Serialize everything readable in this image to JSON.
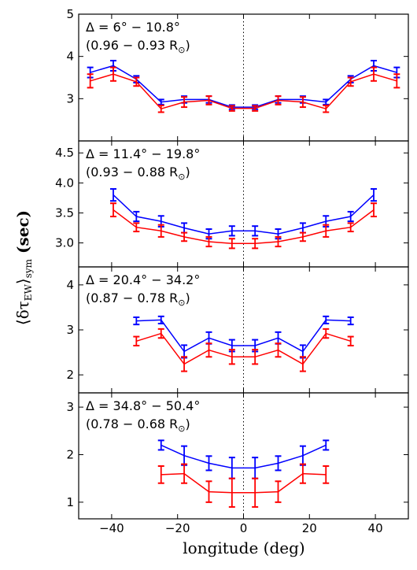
{
  "figure": {
    "xlabel": "longitude (deg)",
    "ylabel_main": "⟨δτ",
    "ylabel_sub1": "EW",
    "ylabel_mid": "⟩",
    "ylabel_sub2": "sym",
    "ylabel_unit": " (sec)",
    "xticks": [
      -40,
      -20,
      0,
      20,
      40
    ],
    "xticklabels": [
      "−40",
      "−20",
      "0",
      "20",
      "40"
    ],
    "xlim": [
      -50,
      50
    ],
    "vline_x": 0
  },
  "chart_data": [
    {
      "type": "line",
      "label_line1": "Δ = 6° − 10.8°",
      "label_line2": "(0.96 − 0.93 R",
      "label_sun": "⊙",
      "label_close": ")",
      "ylim": [
        2.0,
        5.0
      ],
      "yticks": [
        3,
        4,
        5
      ],
      "yticklabels": [
        "3",
        "4",
        "5"
      ],
      "x": [
        -46.5,
        -39.5,
        -32.5,
        -25,
        -18,
        -10.5,
        -3.5,
        3.5,
        10.5,
        18,
        25,
        32.5,
        39.5,
        46.5
      ],
      "series": [
        {
          "color": "#0000ff",
          "values": [
            3.62,
            3.78,
            3.46,
            2.92,
            2.98,
            2.98,
            2.8,
            2.8,
            2.98,
            2.98,
            2.92,
            3.46,
            3.78,
            3.62
          ],
          "err": [
            0.12,
            0.12,
            0.08,
            0.06,
            0.08,
            0.08,
            0.05,
            0.05,
            0.08,
            0.08,
            0.06,
            0.08,
            0.12,
            0.12
          ]
        },
        {
          "color": "#ff0000",
          "values": [
            3.42,
            3.58,
            3.4,
            2.76,
            2.92,
            2.96,
            2.77,
            2.77,
            2.96,
            2.92,
            2.76,
            3.4,
            3.58,
            3.42
          ],
          "err": [
            0.16,
            0.16,
            0.1,
            0.08,
            0.12,
            0.1,
            0.06,
            0.06,
            0.1,
            0.12,
            0.08,
            0.1,
            0.16,
            0.16
          ]
        }
      ]
    },
    {
      "type": "line",
      "label_line1": "Δ = 11.4° − 19.8°",
      "label_line2": "(0.93 − 0.88 R",
      "label_sun": "⊙",
      "label_close": ")",
      "ylim": [
        2.6,
        4.7
      ],
      "yticks": [
        3.0,
        3.5,
        4.0,
        4.5
      ],
      "yticklabels": [
        "3.0",
        "3.5",
        "4.0",
        "4.5"
      ],
      "x": [
        -39.5,
        -32.5,
        -25,
        -18,
        -10.5,
        -3.5,
        3.5,
        10.5,
        18,
        25,
        32.5,
        39.5
      ],
      "series": [
        {
          "color": "#0000ff",
          "values": [
            3.8,
            3.44,
            3.36,
            3.25,
            3.15,
            3.2,
            3.2,
            3.15,
            3.25,
            3.36,
            3.44,
            3.8
          ],
          "err": [
            0.1,
            0.08,
            0.09,
            0.08,
            0.08,
            0.08,
            0.08,
            0.08,
            0.08,
            0.09,
            0.08,
            0.1
          ]
        },
        {
          "color": "#ff0000",
          "values": [
            3.55,
            3.26,
            3.2,
            3.1,
            3.02,
            2.99,
            2.99,
            3.02,
            3.1,
            3.2,
            3.26,
            3.55
          ],
          "err": [
            0.11,
            0.07,
            0.1,
            0.07,
            0.08,
            0.08,
            0.08,
            0.08,
            0.07,
            0.1,
            0.07,
            0.11
          ]
        }
      ]
    },
    {
      "type": "line",
      "label_line1": "Δ = 20.4° − 34.2°",
      "label_line2": "(0.87 − 0.78 R",
      "label_sun": "⊙",
      "label_close": ")",
      "ylim": [
        1.6,
        4.4
      ],
      "yticks": [
        2,
        3,
        4
      ],
      "yticklabels": [
        "2",
        "3",
        "4"
      ],
      "x": [
        -32.5,
        -25,
        -18,
        -10.5,
        -3.5,
        3.5,
        10.5,
        18,
        25,
        32.5
      ],
      "series": [
        {
          "color": "#0000ff",
          "values": [
            3.2,
            3.22,
            2.52,
            2.82,
            2.65,
            2.65,
            2.82,
            2.52,
            3.22,
            3.2
          ],
          "err": [
            0.08,
            0.08,
            0.14,
            0.13,
            0.13,
            0.13,
            0.13,
            0.14,
            0.08,
            0.08
          ]
        },
        {
          "color": "#ff0000",
          "values": [
            2.75,
            2.92,
            2.24,
            2.55,
            2.4,
            2.4,
            2.55,
            2.24,
            2.92,
            2.75
          ],
          "err": [
            0.1,
            0.1,
            0.16,
            0.15,
            0.16,
            0.16,
            0.15,
            0.16,
            0.1,
            0.1
          ]
        }
      ]
    },
    {
      "type": "line",
      "label_line1": "Δ = 34.8° − 50.4°",
      "label_line2": "(0.78 − 0.68 R",
      "label_sun": "⊙",
      "label_close": ")",
      "ylim": [
        0.65,
        3.3
      ],
      "yticks": [
        1,
        2,
        3
      ],
      "yticklabels": [
        "1",
        "2",
        "3"
      ],
      "x": [
        -25,
        -18,
        -10.5,
        -3.5,
        3.5,
        10.5,
        18,
        25
      ],
      "series": [
        {
          "color": "#0000ff",
          "values": [
            2.2,
            1.98,
            1.82,
            1.72,
            1.72,
            1.82,
            1.98,
            2.2
          ],
          "err": [
            0.1,
            0.2,
            0.15,
            0.22,
            0.22,
            0.15,
            0.2,
            0.1
          ]
        },
        {
          "color": "#ff0000",
          "values": [
            1.58,
            1.6,
            1.22,
            1.2,
            1.2,
            1.22,
            1.6,
            1.58
          ],
          "err": [
            0.18,
            0.2,
            0.22,
            0.3,
            0.3,
            0.22,
            0.2,
            0.18
          ]
        }
      ]
    }
  ]
}
